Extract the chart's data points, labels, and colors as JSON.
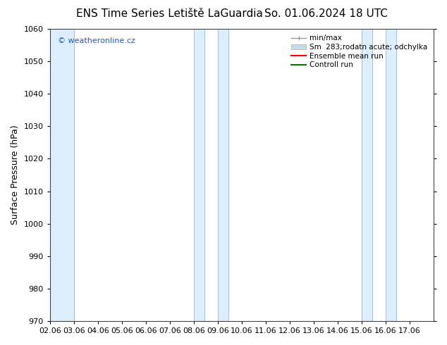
{
  "title_left": "ENS Time Series Letiště LaGuardia",
  "title_right": "So. 01.06.2024 18 UTC",
  "ylabel": "Surface Pressure (hPa)",
  "ylim": [
    970,
    1060
  ],
  "yticks": [
    970,
    980,
    990,
    1000,
    1010,
    1020,
    1030,
    1040,
    1050,
    1060
  ],
  "xlim": [
    0,
    16
  ],
  "xtick_labels": [
    "02.06",
    "03.06",
    "04.06",
    "05.06",
    "06.06",
    "07.06",
    "08.06",
    "09.06",
    "10.06",
    "11.06",
    "12.06",
    "13.06",
    "14.06",
    "15.06",
    "16.06",
    "17.06"
  ],
  "copyright_text": "© weatheronline.cz",
  "legend_entries": [
    "min/max",
    "Sm  283;rodatn acute; odchylka",
    "Ensemble mean run",
    "Controll run"
  ],
  "band_color": "#ddeeff",
  "band_positions": [
    0,
    1,
    6,
    7,
    8,
    13,
    14
  ],
  "band_widths": [
    1,
    0.4,
    1,
    0.4,
    1,
    1,
    0.4
  ],
  "background_color": "#ffffff",
  "plot_bg_color": "#ffffff",
  "title_fontsize": 11,
  "tick_fontsize": 8,
  "ylabel_fontsize": 9,
  "ensemble_mean_color": "#ff0000",
  "control_run_color": "#008000",
  "minmax_color": "#999999",
  "std_color": "#c8dce8",
  "vline_color": "#a0b8cc"
}
